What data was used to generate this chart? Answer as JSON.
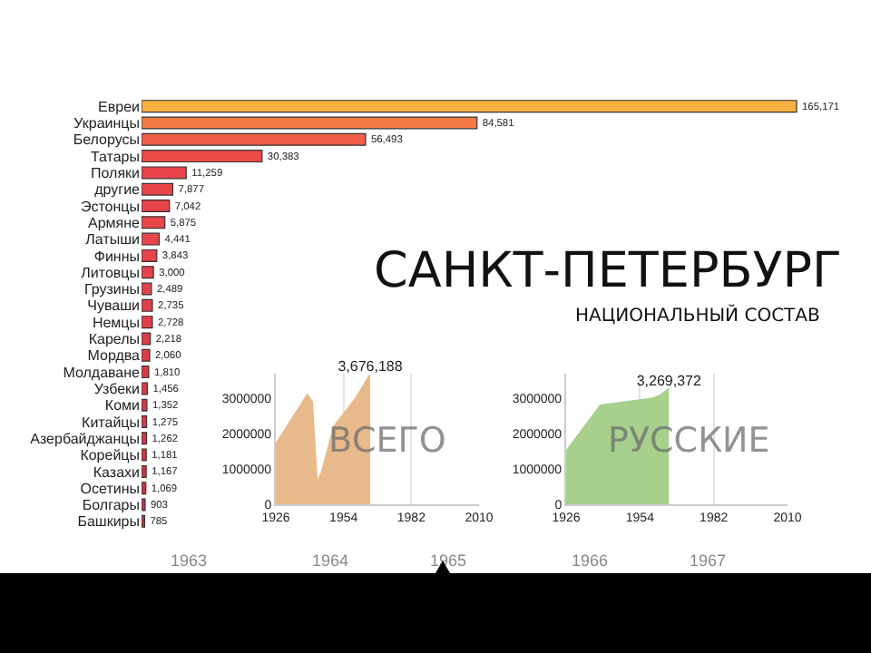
{
  "chart_data": [
    {
      "type": "bar",
      "orientation": "horizontal",
      "title": "САНКТ-ПЕТЕРБУРГ",
      "subtitle": "НАЦИОНАЛЬНЫЙ СОСТАВ",
      "categories": [
        "Евреи",
        "Украинцы",
        "Белорусы",
        "Татары",
        "Поляки",
        "другие",
        "Эстонцы",
        "Армяне",
        "Латыши",
        "Финны",
        "Литовцы",
        "Грузины",
        "Чуваши",
        "Немцы",
        "Карелы",
        "Мордва",
        "Молдаване",
        "Узбеки",
        "Коми",
        "Китайцы",
        "Азербайджанцы",
        "Корейцы",
        "Казахи",
        "Осетины",
        "Болгары",
        "Башкиры"
      ],
      "values": [
        165171,
        84581,
        56493,
        30383,
        11259,
        7877,
        7042,
        5875,
        4441,
        3843,
        3000,
        2489,
        2735,
        2728,
        2218,
        2060,
        1810,
        1456,
        1352,
        1275,
        1262,
        1181,
        1167,
        1069,
        903,
        785
      ],
      "colors": [
        "#f8b040",
        "#f47c44",
        "#ef5e47",
        "#ea4d48",
        "#e8454a",
        "#e8454a",
        "#e8454a",
        "#e8454a",
        "#e8454a",
        "#e8454a",
        "#e4424a",
        "#e4424a",
        "#e0404a",
        "#e0404a",
        "#dc3e48",
        "#dc3e48",
        "#d83c47",
        "#d83c47",
        "#d43a46",
        "#d43a46",
        "#d03845",
        "#d03845",
        "#cc3644",
        "#cc3644",
        "#c83443",
        "#c83443"
      ],
      "value_labels": [
        "165,171",
        "84,581",
        "56,493",
        "30,383",
        "11,259",
        "7,877",
        "7,042",
        "5,875",
        "4,441",
        "3,843",
        "3,000",
        "2,489",
        "2,735",
        "2,728",
        "2,218",
        "2,060",
        "1,810",
        "1,456",
        "1,352",
        "1,275",
        "1,262",
        "1,181",
        "1,167",
        "1,069",
        "903",
        "785"
      ],
      "annotations": [
        "1963",
        "1964",
        "1965",
        "1966",
        "1967"
      ]
    },
    {
      "type": "area",
      "x": [
        1926,
        1939,
        1941,
        1943,
        1945,
        1950,
        1959,
        1965
      ],
      "values": [
        1700000,
        3100000,
        2900000,
        600000,
        900000,
        2200000,
        3000000,
        3676188
      ],
      "value_labels": [
        null,
        null,
        null,
        null,
        null,
        null,
        null,
        "3,676,188"
      ],
      "color": "#e8b98a",
      "xlim": [
        1926,
        2010
      ],
      "ylim": [
        0,
        3700000
      ],
      "xticks": [
        1926,
        1954,
        1982,
        2010
      ],
      "yticks": [
        0,
        1000000,
        2000000,
        3000000
      ],
      "grid": "x",
      "annotations": [
        "ВСЕГО"
      ]
    },
    {
      "type": "area",
      "x": [
        1926,
        1939,
        1959,
        1962,
        1965
      ],
      "values": [
        1500000,
        2800000,
        3000000,
        3100000,
        3269372
      ],
      "value_labels": [
        null,
        null,
        null,
        null,
        "3,269,372"
      ],
      "color": "#a8d08d",
      "xlim": [
        1926,
        2010
      ],
      "ylim": [
        0,
        3700000
      ],
      "xticks": [
        1926,
        1954,
        1982,
        2010
      ],
      "yticks": [
        0,
        1000000,
        2000000,
        3000000
      ],
      "grid": "x",
      "annotations": [
        "РУССКИЕ"
      ]
    }
  ]
}
